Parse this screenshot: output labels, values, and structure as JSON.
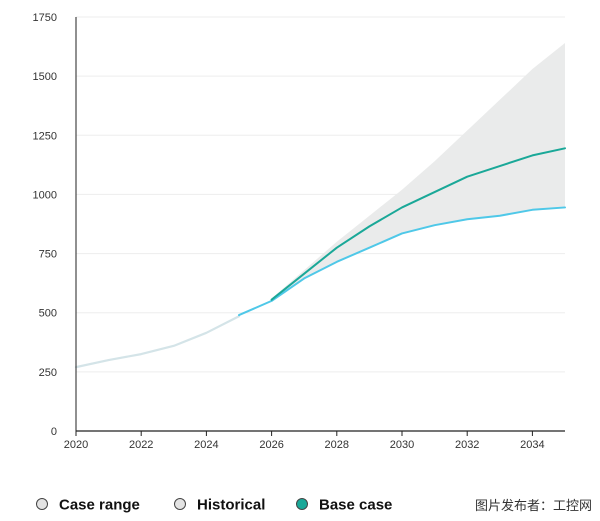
{
  "chart_data": {
    "type": "line",
    "title": "",
    "xlabel": "",
    "ylabel": "",
    "xlim": [
      2020,
      2035
    ],
    "ylim": [
      0,
      1750
    ],
    "x_ticks": [
      2020,
      2022,
      2024,
      2026,
      2028,
      2030,
      2032,
      2034
    ],
    "y_ticks": [
      0,
      250,
      500,
      750,
      1000,
      1250,
      1500,
      1750
    ],
    "grid": {
      "horizontal": true,
      "vertical": false
    },
    "legend_position": "bottom-left",
    "series": [
      {
        "name": "Historical",
        "color": "#d4e4e8",
        "x": [
          2020,
          2021,
          2022,
          2023,
          2024,
          2025
        ],
        "y": [
          270,
          300,
          325,
          360,
          415,
          485
        ]
      },
      {
        "name": "",
        "color": "#4fc8e8",
        "x": [
          2025,
          2026,
          2027,
          2028,
          2029,
          2030,
          2031,
          2032,
          2033,
          2034,
          2035
        ],
        "y": [
          490,
          550,
          645,
          715,
          775,
          835,
          870,
          895,
          910,
          935,
          945
        ]
      },
      {
        "name": "Base case",
        "color": "#1aa898",
        "x": [
          2026,
          2027,
          2028,
          2029,
          2030,
          2031,
          2032,
          2033,
          2034,
          2035
        ],
        "y": [
          555,
          665,
          775,
          865,
          945,
          1010,
          1075,
          1120,
          1165,
          1195
        ]
      }
    ],
    "range_band": {
      "name": "Case range",
      "color": "#eaebeb",
      "x": [
        2026,
        2027,
        2028,
        2029,
        2030,
        2031,
        2032,
        2033,
        2034,
        2035
      ],
      "lower": [
        550,
        645,
        715,
        775,
        835,
        870,
        895,
        910,
        935,
        945
      ],
      "upper": [
        560,
        680,
        800,
        910,
        1020,
        1140,
        1270,
        1400,
        1530,
        1640
      ]
    },
    "legend": [
      {
        "label": "Case range",
        "marker_color": "#e3e3e3"
      },
      {
        "label": "Historical",
        "marker_color": "#e3e3e3"
      },
      {
        "label": "Base case",
        "marker_color": "#1aa898"
      }
    ]
  },
  "watermark": "图片发布者：工控网"
}
